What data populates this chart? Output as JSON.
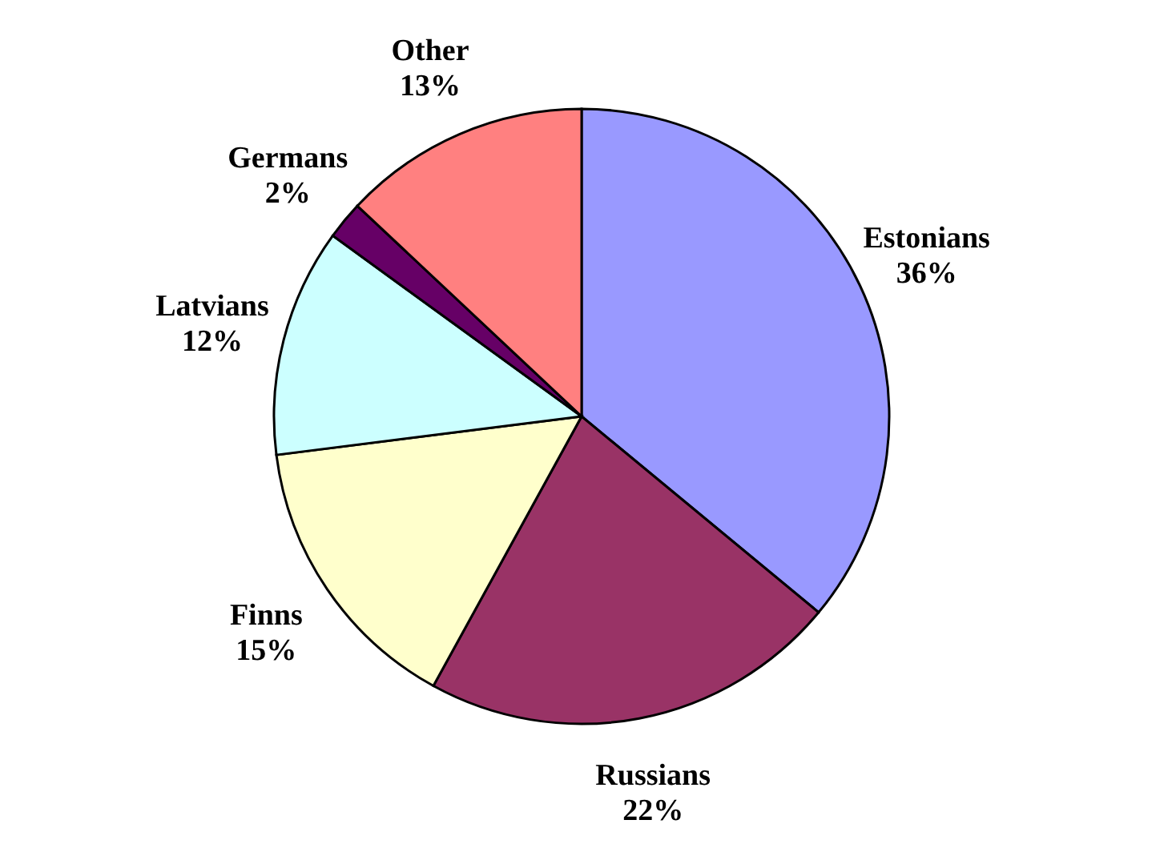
{
  "chart_data": {
    "type": "pie",
    "categories": [
      "Estonians",
      "Russians",
      "Finns",
      "Latvians",
      "Germans",
      "Other"
    ],
    "values": [
      36,
      22,
      15,
      12,
      2,
      13
    ],
    "value_labels": [
      "36%",
      "22%",
      "15%",
      "12%",
      "2%",
      "13%"
    ],
    "colors": [
      "#9999ff",
      "#993366",
      "#ffffcc",
      "#ccffff",
      "#660066",
      "#ff8080"
    ]
  }
}
